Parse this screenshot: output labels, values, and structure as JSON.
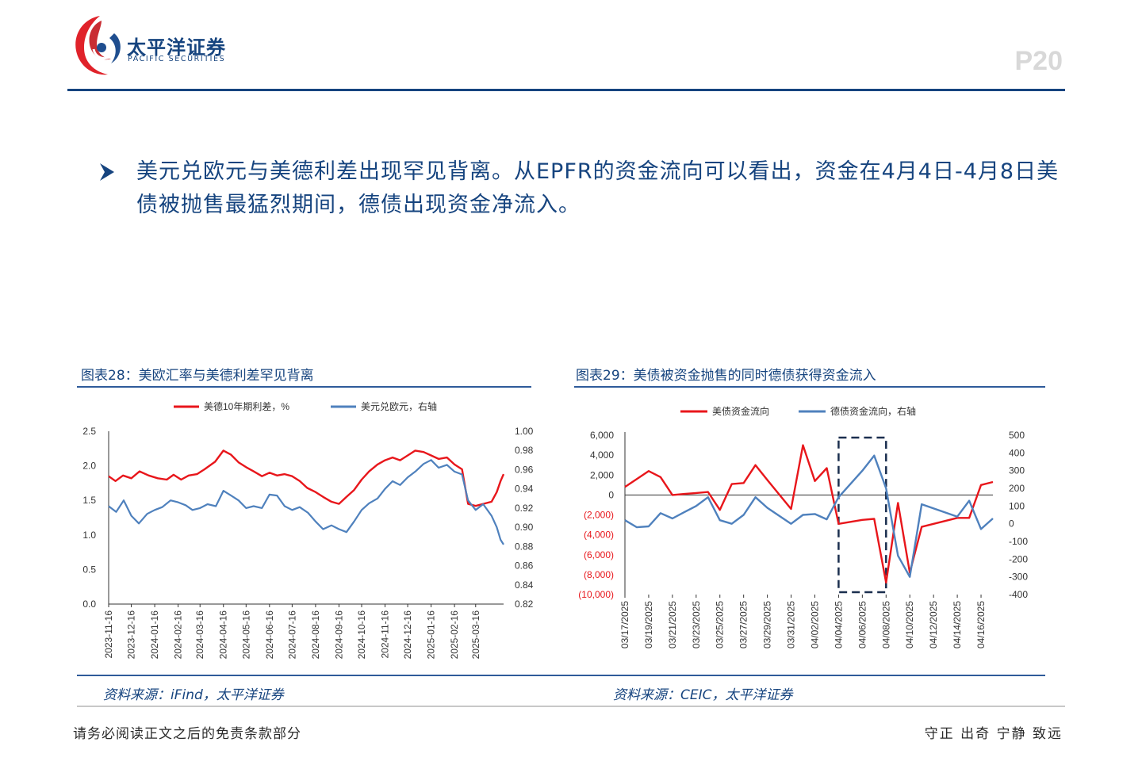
{
  "header": {
    "brand_cn": "太平洋证券",
    "brand_en": "PACIFIC SECURITIES",
    "page_number": "P20"
  },
  "bullet": {
    "text": "美元兑欧元与美德利差出现罕见背离。从EPFR的资金流向可以看出，资金在4月4日-4月8日美债被抛售最猛烈期间，德债出现资金净流入。"
  },
  "colors": {
    "brand_blue": "#16447f",
    "series_red": "#e8161b",
    "series_blue": "#4f81bd",
    "logo_red": "#e0222a"
  },
  "chart_data": [
    {
      "type": "line",
      "title": "图表28：美欧汇率与美德利差罕见背离",
      "source": "资料来源：iFind，太平洋证券",
      "legend_position": "top",
      "grid": false,
      "x_ticks": [
        "2023-11-16",
        "2023-12-16",
        "2024-01-16",
        "2024-02-16",
        "2024-03-16",
        "2024-04-16",
        "2024-05-16",
        "2024-06-16",
        "2024-07-16",
        "2024-08-16",
        "2024-09-16",
        "2024-10-16",
        "2024-11-16",
        "2024-12-16",
        "2025-01-16",
        "2025-02-16",
        "2025-03-16"
      ],
      "y_left_ticks": [
        "2.5",
        "2.0",
        "1.5",
        "1.0",
        "0.5",
        "0.0"
      ],
      "y_right_ticks": [
        "1.00",
        "0.98",
        "0.96",
        "0.94",
        "0.92",
        "0.90",
        "0.88",
        "0.86",
        "0.84",
        "0.82"
      ],
      "ylim_left": [
        0,
        2.5
      ],
      "ylim_right": [
        0.82,
        1.0
      ],
      "x_start": "2023-11-16",
      "x_end": "2025-04-22",
      "series": [
        {
          "name": "美德10年期利差，%",
          "axis": "left",
          "color": "#e8161b",
          "points": [
            [
              "2023-11-16",
              1.85
            ],
            [
              "2023-11-25",
              1.78
            ],
            [
              "2023-12-05",
              1.86
            ],
            [
              "2023-12-16",
              1.82
            ],
            [
              "2023-12-27",
              1.92
            ],
            [
              "2024-01-08",
              1.86
            ],
            [
              "2024-01-20",
              1.82
            ],
            [
              "2024-02-01",
              1.8
            ],
            [
              "2024-02-10",
              1.87
            ],
            [
              "2024-02-20",
              1.8
            ],
            [
              "2024-03-01",
              1.86
            ],
            [
              "2024-03-12",
              1.88
            ],
            [
              "2024-03-22",
              1.95
            ],
            [
              "2024-04-05",
              2.06
            ],
            [
              "2024-04-16",
              2.22
            ],
            [
              "2024-04-26",
              2.16
            ],
            [
              "2024-05-06",
              2.05
            ],
            [
              "2024-05-16",
              1.98
            ],
            [
              "2024-05-26",
              1.92
            ],
            [
              "2024-06-06",
              1.85
            ],
            [
              "2024-06-16",
              1.9
            ],
            [
              "2024-06-26",
              1.86
            ],
            [
              "2024-07-06",
              1.88
            ],
            [
              "2024-07-16",
              1.85
            ],
            [
              "2024-07-26",
              1.78
            ],
            [
              "2024-08-05",
              1.68
            ],
            [
              "2024-08-16",
              1.62
            ],
            [
              "2024-08-26",
              1.55
            ],
            [
              "2024-09-06",
              1.48
            ],
            [
              "2024-09-16",
              1.45
            ],
            [
              "2024-09-26",
              1.55
            ],
            [
              "2024-10-06",
              1.65
            ],
            [
              "2024-10-16",
              1.8
            ],
            [
              "2024-10-26",
              1.92
            ],
            [
              "2024-11-06",
              2.02
            ],
            [
              "2024-11-16",
              2.08
            ],
            [
              "2024-11-26",
              2.12
            ],
            [
              "2024-12-06",
              2.08
            ],
            [
              "2024-12-16",
              2.15
            ],
            [
              "2024-12-26",
              2.22
            ],
            [
              "2025-01-06",
              2.2
            ],
            [
              "2025-01-16",
              2.15
            ],
            [
              "2025-01-26",
              2.1
            ],
            [
              "2025-02-06",
              2.12
            ],
            [
              "2025-02-16",
              2.02
            ],
            [
              "2025-02-26",
              1.95
            ],
            [
              "2025-03-06",
              1.45
            ],
            [
              "2025-03-16",
              1.42
            ],
            [
              "2025-03-26",
              1.45
            ],
            [
              "2025-04-06",
              1.48
            ],
            [
              "2025-04-13",
              1.62
            ],
            [
              "2025-04-18",
              1.78
            ],
            [
              "2025-04-22",
              1.88
            ]
          ]
        },
        {
          "name": "美元兑欧元，右轴",
          "axis": "right",
          "color": "#4f81bd",
          "points": [
            [
              "2023-11-16",
              0.922
            ],
            [
              "2023-11-26",
              0.916
            ],
            [
              "2023-12-06",
              0.928
            ],
            [
              "2023-12-16",
              0.912
            ],
            [
              "2023-12-26",
              0.904
            ],
            [
              "2024-01-06",
              0.914
            ],
            [
              "2024-01-16",
              0.918
            ],
            [
              "2024-01-26",
              0.921
            ],
            [
              "2024-02-06",
              0.928
            ],
            [
              "2024-02-16",
              0.926
            ],
            [
              "2024-02-26",
              0.923
            ],
            [
              "2024-03-06",
              0.918
            ],
            [
              "2024-03-16",
              0.92
            ],
            [
              "2024-03-26",
              0.924
            ],
            [
              "2024-04-06",
              0.922
            ],
            [
              "2024-04-16",
              0.938
            ],
            [
              "2024-04-26",
              0.933
            ],
            [
              "2024-05-06",
              0.928
            ],
            [
              "2024-05-16",
              0.92
            ],
            [
              "2024-05-26",
              0.922
            ],
            [
              "2024-06-06",
              0.92
            ],
            [
              "2024-06-16",
              0.934
            ],
            [
              "2024-06-26",
              0.933
            ],
            [
              "2024-07-06",
              0.922
            ],
            [
              "2024-07-16",
              0.918
            ],
            [
              "2024-07-26",
              0.921
            ],
            [
              "2024-08-06",
              0.915
            ],
            [
              "2024-08-16",
              0.906
            ],
            [
              "2024-08-26",
              0.898
            ],
            [
              "2024-09-06",
              0.902
            ],
            [
              "2024-09-16",
              0.898
            ],
            [
              "2024-09-26",
              0.895
            ],
            [
              "2024-10-06",
              0.906
            ],
            [
              "2024-10-16",
              0.918
            ],
            [
              "2024-10-26",
              0.925
            ],
            [
              "2024-11-06",
              0.93
            ],
            [
              "2024-11-16",
              0.94
            ],
            [
              "2024-11-26",
              0.948
            ],
            [
              "2024-12-06",
              0.944
            ],
            [
              "2024-12-16",
              0.952
            ],
            [
              "2024-12-26",
              0.958
            ],
            [
              "2025-01-06",
              0.966
            ],
            [
              "2025-01-16",
              0.97
            ],
            [
              "2025-01-26",
              0.962
            ],
            [
              "2025-02-06",
              0.965
            ],
            [
              "2025-02-16",
              0.958
            ],
            [
              "2025-02-26",
              0.955
            ],
            [
              "2025-03-06",
              0.928
            ],
            [
              "2025-03-16",
              0.918
            ],
            [
              "2025-03-26",
              0.924
            ],
            [
              "2025-04-06",
              0.912
            ],
            [
              "2025-04-13",
              0.9
            ],
            [
              "2025-04-18",
              0.887
            ],
            [
              "2025-04-22",
              0.882
            ]
          ]
        }
      ]
    },
    {
      "type": "line",
      "title": "图表29：美债被资金抛售的同时德债获得资金流入",
      "source": "资料来源：CEIC，太平洋证券",
      "legend_position": "top",
      "grid": false,
      "categories": [
        "03/17/2025",
        "03/18/2025",
        "03/19/2025",
        "03/20/2025",
        "03/21/2025",
        "03/22/2025",
        "03/23/2025",
        "03/24/2025",
        "03/25/2025",
        "03/26/2025",
        "03/27/2025",
        "03/28/2025",
        "03/29/2025",
        "03/30/2025",
        "03/31/2025",
        "04/01/2025",
        "04/02/2025",
        "04/03/2025",
        "04/04/2025",
        "04/05/2025",
        "04/06/2025",
        "04/07/2025",
        "04/08/2025",
        "04/09/2025",
        "04/10/2025",
        "04/11/2025",
        "04/12/2025",
        "04/13/2025",
        "04/14/2025",
        "04/15/2025",
        "04/16/2025",
        "04/17/2025"
      ],
      "x_tick_labels": [
        "03/17/2025",
        "03/19/2025",
        "03/21/2025",
        "03/23/2025",
        "03/25/2025",
        "03/27/2025",
        "03/29/2025",
        "03/31/2025",
        "04/02/2025",
        "04/04/2025",
        "04/06/2025",
        "04/08/2025",
        "04/10/2025",
        "04/12/2025",
        "04/14/2025",
        "04/16/2025"
      ],
      "y_left_ticks": [
        "6,000",
        "4,000",
        "2,000",
        "0",
        "(2,000)",
        "(4,000)",
        "(6,000)",
        "(8,000)",
        "(10,000)"
      ],
      "y_right_ticks": [
        "500",
        "400",
        "300",
        "200",
        "100",
        "0",
        "-100",
        "-200",
        "-300",
        "-400"
      ],
      "ylim_left": [
        -10000,
        6000
      ],
      "ylim_right": [
        -400,
        500
      ],
      "highlight_range": [
        "04/04/2025",
        "04/08/2025"
      ],
      "series": [
        {
          "name": "美债资金流向",
          "axis": "left",
          "color": "#e8161b",
          "values": [
            800,
            1600,
            2400,
            1800,
            0,
            100,
            200,
            300,
            -1500,
            1100,
            1200,
            3000,
            1500,
            null,
            -1400,
            5000,
            1400,
            2700,
            -2900,
            null,
            -2500,
            -2400,
            -8800,
            -800,
            -7800,
            -3200,
            null,
            null,
            -2300,
            -2300,
            1000,
            1300
          ]
        },
        {
          "name": "德债资金流向，右轴",
          "axis": "right",
          "color": "#4f81bd",
          "values": [
            20,
            -20,
            -15,
            60,
            30,
            65,
            100,
            150,
            20,
            0,
            50,
            150,
            90,
            null,
            0,
            50,
            55,
            25,
            150,
            null,
            300,
            385,
            200,
            -180,
            -300,
            110,
            null,
            null,
            40,
            130,
            -30,
            30
          ]
        }
      ]
    }
  ],
  "footer": {
    "disclaimer": "请务必阅读正文之后的免责条款部分",
    "motto": "守正 出奇 宁静 致远"
  }
}
